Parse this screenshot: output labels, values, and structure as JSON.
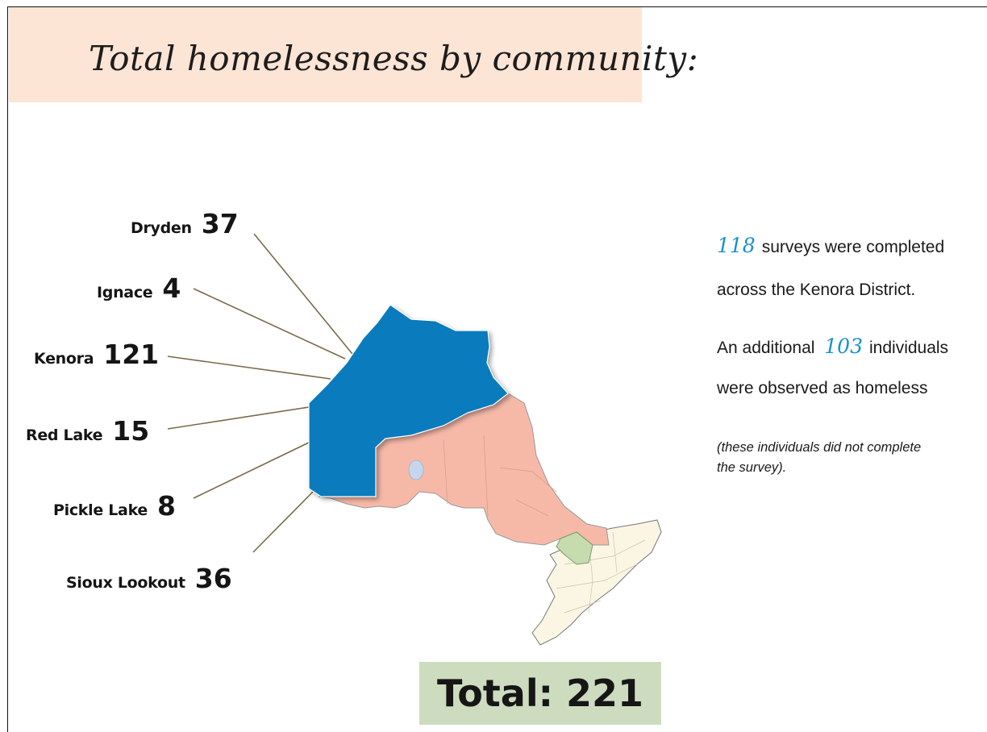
{
  "title": "Total homelessness by community:",
  "communities": [
    {
      "name": "Dryden",
      "value": "37"
    },
    {
      "name": "Ignace",
      "value": "4"
    },
    {
      "name": "Kenora",
      "value": "121"
    },
    {
      "name": "Red Lake",
      "value": "15"
    },
    {
      "name": "Pickle Lake",
      "value": "8"
    },
    {
      "name": "Sioux Lookout",
      "value": "36"
    }
  ],
  "total_label": "Total: 221",
  "summary": {
    "surveys_count": "118",
    "surveys_line1": "surveys were completed",
    "surveys_line2": "across the Kenora District.",
    "additional_prefix": "An additional",
    "additional_count": "103",
    "additional_suffix": "individuals",
    "observed_line": "were observed as homeless",
    "note_line1": "(these individuals did not complete",
    "note_line2": "the survey)."
  },
  "colors": {
    "kenora_district": "#0a7bbd",
    "northern_ontario": "#f6b9a8",
    "highlight_region": "#c6dcae",
    "southern_ontario": "#fbf6e4",
    "accent_numbers": "#1a8fd0"
  }
}
